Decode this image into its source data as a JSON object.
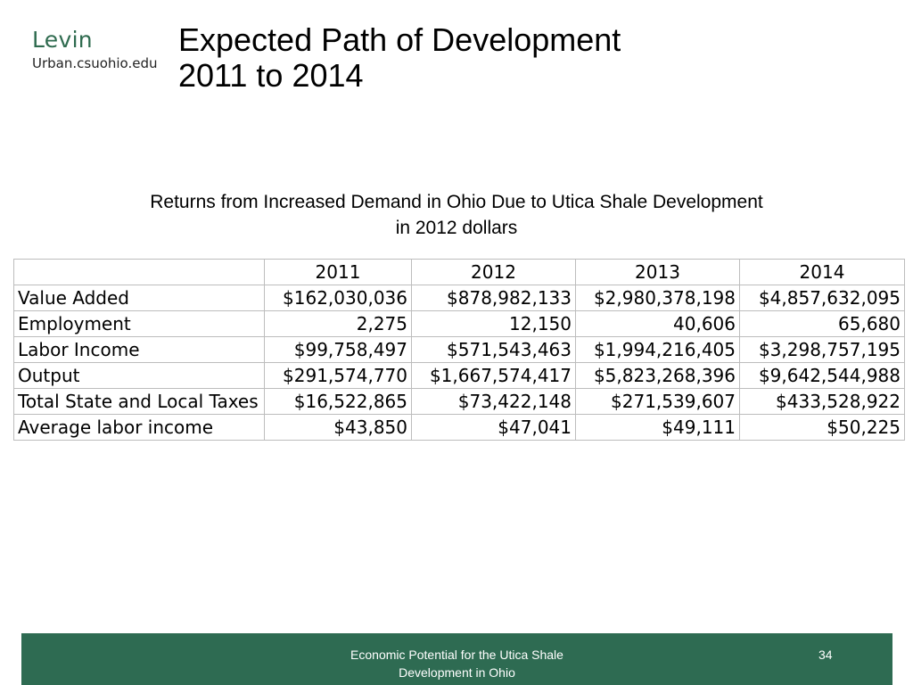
{
  "logo": {
    "name": "Levin",
    "url": "Urban.csuohio.edu"
  },
  "slide": {
    "title_line1": "Expected Path of Development",
    "title_line2": "2011 to 2014",
    "subtitle_line1": "Returns from Increased Demand in Ohio Due to Utica Shale Development",
    "subtitle_line2": "in 2012 dollars"
  },
  "table": {
    "header": [
      "",
      "2011",
      "2012",
      "2013",
      "2014"
    ],
    "rows": [
      {
        "label": "Value Added",
        "values": [
          "$162,030,036",
          "$878,982,133",
          "$2,980,378,198",
          "$4,857,632,095"
        ]
      },
      {
        "label": "Employment",
        "values": [
          "2,275",
          "12,150",
          "40,606",
          "65,680"
        ]
      },
      {
        "label": "Labor Income",
        "values": [
          "$99,758,497",
          "$571,543,463",
          "$1,994,216,405",
          "$3,298,757,195"
        ]
      },
      {
        "label": "Output",
        "values": [
          "$291,574,770",
          "$1,667,574,417",
          "$5,823,268,396",
          "$9,642,544,988"
        ]
      },
      {
        "label": "Total State and Local Taxes",
        "values": [
          "$16,522,865",
          "$73,422,148",
          "$271,539,607",
          "$433,528,922"
        ]
      },
      {
        "label": "Average labor income",
        "values": [
          "$43,850",
          "$47,041",
          "$49,111",
          "$50,225"
        ]
      }
    ]
  },
  "footer": {
    "line1": "Economic Potential for the Utica Shale",
    "line2": "Development in Ohio",
    "page_number": "34"
  },
  "colors": {
    "brand_green": "#2e6b52",
    "logo_green": "#2f6b4f"
  }
}
